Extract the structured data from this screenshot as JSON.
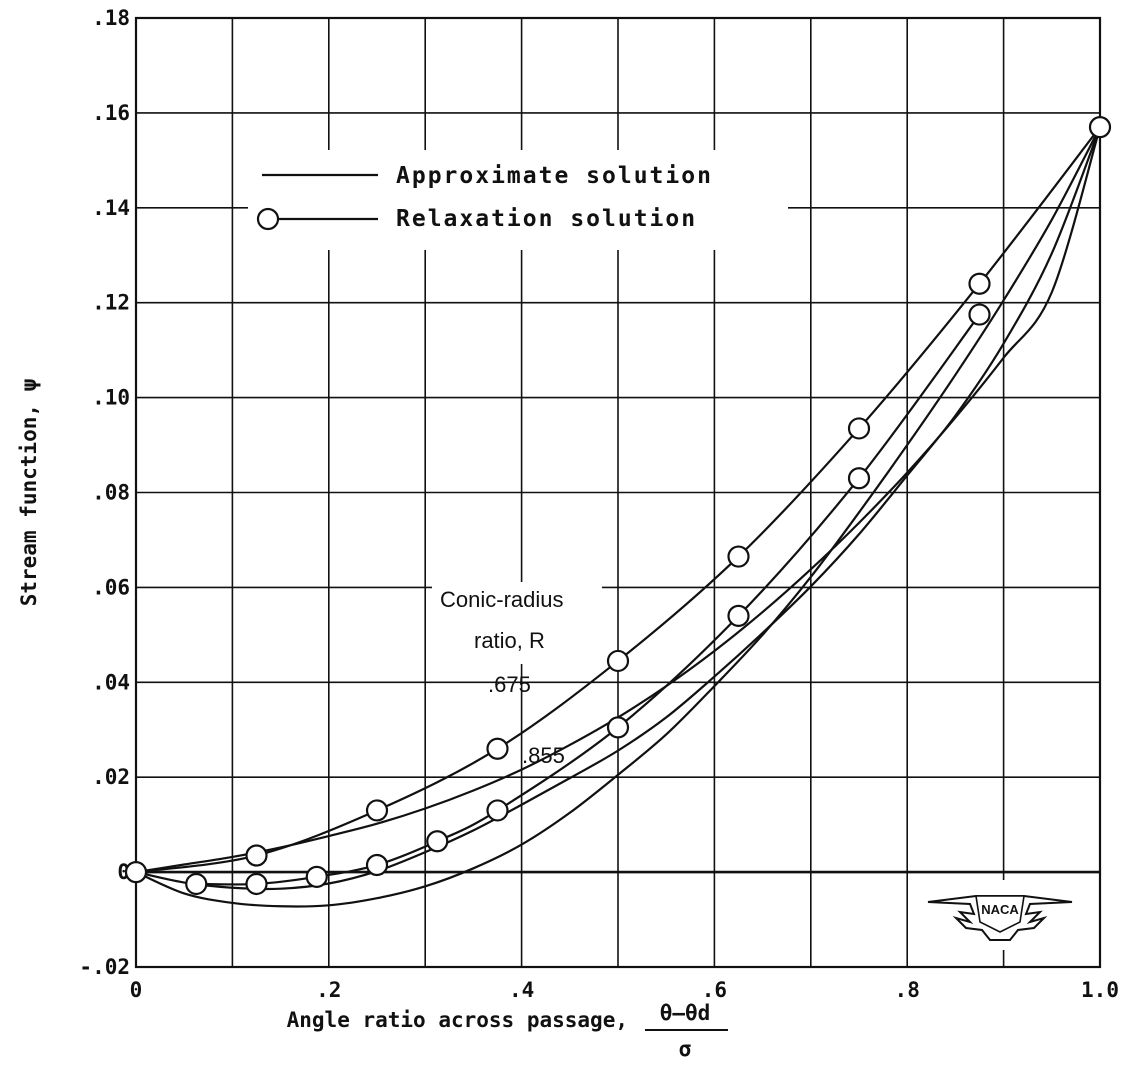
{
  "chart_data": {
    "type": "line",
    "xlabel": "Angle ratio across passage,",
    "xlabel_fraction": {
      "numerator": "θ–θd",
      "denominator": "σ"
    },
    "ylabel": "Stream function, ψ",
    "xlim": [
      0,
      1.0
    ],
    "ylim": [
      -0.02,
      0.18
    ],
    "x_ticks": [
      0,
      0.1,
      0.2,
      0.3,
      0.4,
      0.5,
      0.6,
      0.7,
      0.8,
      0.9,
      1.0
    ],
    "x_tick_labels": [
      "0",
      "",
      ".2",
      "",
      ".4",
      "",
      ".6",
      "",
      ".8",
      "",
      "1.0"
    ],
    "y_ticks": [
      -0.02,
      0,
      0.02,
      0.04,
      0.06,
      0.08,
      0.1,
      0.12,
      0.14,
      0.16,
      0.18
    ],
    "y_tick_labels": [
      "-.02",
      "0",
      ".02",
      ".04",
      ".06",
      ".08",
      ".10",
      ".12",
      ".14",
      ".16",
      ".18"
    ],
    "grid": true,
    "legend": {
      "placement": "upper-left",
      "entries": [
        {
          "label": "Approximate solution",
          "style": "line"
        },
        {
          "label": "Relaxation solution",
          "style": "line-circle"
        }
      ]
    },
    "annotation_title": [
      "Conic-radius",
      "ratio, R"
    ],
    "series": [
      {
        "label": "Approximate solution",
        "style": "line",
        "r_label": ".675",
        "x": [
          0,
          0.05,
          0.1,
          0.15,
          0.2,
          0.25,
          0.3,
          0.35,
          0.4,
          0.45,
          0.5,
          0.55,
          0.6,
          0.65,
          0.7,
          0.75,
          0.8,
          0.85,
          0.9,
          0.95,
          1.0
        ],
        "y": [
          0,
          0.0016,
          0.0032,
          0.0052,
          0.0076,
          0.0102,
          0.0134,
          0.0172,
          0.0216,
          0.0268,
          0.0326,
          0.0392,
          0.0466,
          0.0548,
          0.0638,
          0.0736,
          0.0842,
          0.0958,
          0.1084,
          0.1222,
          0.157
        ]
      },
      {
        "label": "Approximate solution",
        "style": "line",
        "r_label": ".855",
        "x": [
          0,
          0.05,
          0.1,
          0.15,
          0.2,
          0.25,
          0.3,
          0.35,
          0.4,
          0.45,
          0.5,
          0.55,
          0.6,
          0.65,
          0.7,
          0.75,
          0.8,
          0.85,
          0.9,
          0.95,
          1.0
        ],
        "y": [
          0,
          -0.0022,
          -0.0033,
          -0.0035,
          -0.0024,
          0.0002,
          0.0042,
          0.0088,
          0.0142,
          0.0198,
          0.0256,
          0.0326,
          0.0412,
          0.0504,
          0.0602,
          0.0712,
          0.0836,
          0.0962,
          0.1114,
          0.1304,
          0.157
        ]
      },
      {
        "label": "Approximate solution",
        "style": "line",
        "r_label": "",
        "x": [
          0,
          0.05,
          0.1,
          0.15,
          0.2,
          0.25,
          0.3,
          0.35,
          0.4,
          0.45,
          0.5,
          0.55,
          0.6,
          0.65,
          0.7,
          0.75,
          0.8,
          0.85,
          0.9,
          0.95,
          1.0
        ],
        "y": [
          0,
          -0.0045,
          -0.0065,
          -0.0072,
          -0.007,
          -0.0055,
          -0.003,
          0.0008,
          0.0058,
          0.0125,
          0.0205,
          0.029,
          0.0392,
          0.05,
          0.0622,
          0.0758,
          0.09,
          0.1048,
          0.1205,
          0.1375,
          0.157
        ]
      },
      {
        "label": "Relaxation solution",
        "style": "circle",
        "r_label": ".675",
        "x": [
          0,
          0.125,
          0.25,
          0.375,
          0.5,
          0.625,
          0.75,
          0.875,
          1.0
        ],
        "y": [
          0,
          0.0035,
          0.013,
          0.026,
          0.0445,
          0.0665,
          0.0935,
          0.124,
          0.157
        ]
      },
      {
        "label": "Relaxation solution",
        "style": "circle",
        "r_label": ".855",
        "x": [
          0.0625,
          0.125,
          0.1875,
          0.25,
          0.3125,
          0.375,
          0.5,
          0.625,
          0.75,
          0.875
        ],
        "y": [
          -0.0025,
          -0.0025,
          -0.001,
          0.0015,
          0.0065,
          0.013,
          0.0305,
          0.054,
          0.083,
          0.1175
        ]
      }
    ]
  },
  "logo": {
    "name": "NACA",
    "text": "NACA"
  }
}
